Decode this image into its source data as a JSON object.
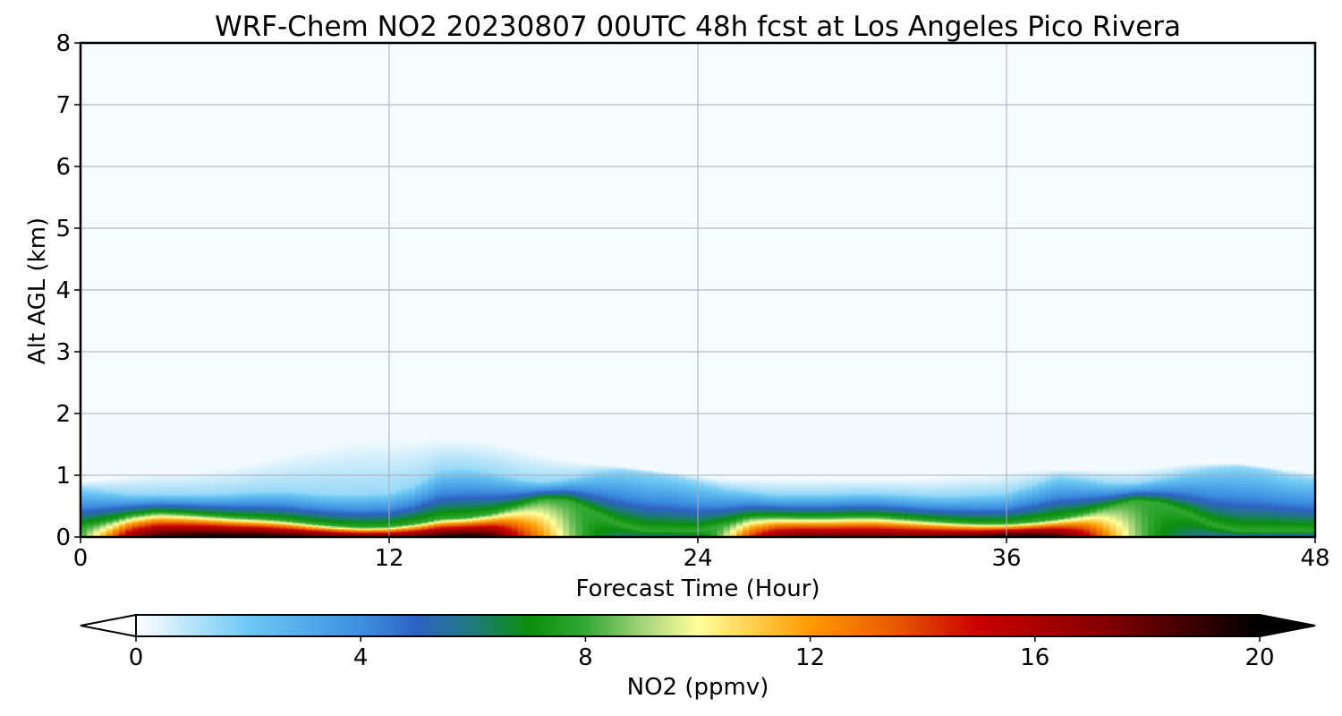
{
  "chart_data": {
    "type": "heatmap",
    "subtype": "filled-contour time-height cross section",
    "title": "WRF-Chem NO2  20230807 00UTC 48h fcst at Los Angeles Pico Rivera",
    "xlabel": "Forecast Time (Hour)",
    "ylabel": "Alt AGL (km)",
    "xlim": [
      0,
      48
    ],
    "ylim": [
      0,
      8
    ],
    "xticks": [
      "0",
      "12",
      "24",
      "36",
      "48"
    ],
    "yticks": [
      "0",
      "1",
      "2",
      "3",
      "4",
      "5",
      "6",
      "7",
      "8"
    ],
    "grid": true,
    "colorbar": {
      "label": "NO2  (ppmv)",
      "range": [
        0,
        20
      ],
      "ticks": [
        "0",
        "4",
        "8",
        "12",
        "16",
        "20"
      ],
      "extend": "both",
      "orientation": "horizontal",
      "placement": "bottom",
      "stops": [
        {
          "value": 0,
          "color": "#ffffff"
        },
        {
          "value": 2,
          "color": "#6cc8f4"
        },
        {
          "value": 4,
          "color": "#3d8fe0"
        },
        {
          "value": 5,
          "color": "#2e62c4"
        },
        {
          "value": 6,
          "color": "#1f7a7a"
        },
        {
          "value": 7,
          "color": "#0a8f0a"
        },
        {
          "value": 8,
          "color": "#33a833"
        },
        {
          "value": 9,
          "color": "#a3d37a"
        },
        {
          "value": 10,
          "color": "#ffff9a"
        },
        {
          "value": 12,
          "color": "#ff9a00"
        },
        {
          "value": 13.5,
          "color": "#e85a00"
        },
        {
          "value": 15,
          "color": "#cc0000"
        },
        {
          "value": 17.5,
          "color": "#7a0000"
        },
        {
          "value": 20,
          "color": "#000000"
        }
      ]
    },
    "profile_model": {
      "background_ppmv": 0.15,
      "haze_ppmv": 1.4,
      "x_hours": [
        0,
        1,
        2,
        3,
        4,
        5,
        6,
        7,
        8,
        9,
        10,
        11,
        12,
        13,
        14,
        15,
        16,
        17,
        18,
        19,
        20,
        21,
        22,
        23,
        24,
        25,
        26,
        27,
        28,
        29,
        30,
        31,
        32,
        33,
        34,
        35,
        36,
        37,
        38,
        39,
        40,
        41,
        42,
        43,
        44,
        45,
        46,
        47,
        48
      ],
      "surface_ppmv": [
        8,
        12,
        17,
        19,
        19.5,
        20,
        20,
        20,
        19.5,
        19,
        18.5,
        18,
        18,
        18.5,
        19.5,
        20,
        19,
        15,
        12,
        9,
        7,
        6,
        5.5,
        5.5,
        6,
        9,
        14,
        17,
        18,
        18,
        18,
        18,
        18,
        18,
        18.5,
        19,
        20,
        20,
        19,
        16,
        12,
        9,
        7,
        6,
        5.5,
        5,
        4.5,
        4.5,
        4.5
      ],
      "core_depth_km": [
        0.15,
        0.25,
        0.35,
        0.4,
        0.38,
        0.35,
        0.32,
        0.3,
        0.27,
        0.22,
        0.18,
        0.16,
        0.17,
        0.22,
        0.3,
        0.32,
        0.38,
        0.5,
        0.62,
        0.6,
        0.4,
        0.2,
        0.1,
        0.1,
        0.1,
        0.2,
        0.32,
        0.33,
        0.32,
        0.32,
        0.33,
        0.33,
        0.3,
        0.27,
        0.24,
        0.22,
        0.22,
        0.25,
        0.3,
        0.38,
        0.5,
        0.6,
        0.55,
        0.4,
        0.2,
        0.1,
        0.1,
        0.1,
        0.1
      ],
      "mix_depth_km": [
        0.8,
        0.75,
        0.7,
        0.7,
        0.7,
        0.7,
        0.72,
        0.75,
        0.75,
        0.72,
        0.7,
        0.7,
        0.72,
        0.85,
        1.1,
        1.12,
        1.05,
        0.95,
        0.9,
        0.95,
        1.05,
        1.1,
        1.05,
        1.0,
        0.9,
        0.8,
        0.75,
        0.7,
        0.7,
        0.7,
        0.72,
        0.72,
        0.7,
        0.68,
        0.68,
        0.7,
        0.72,
        0.85,
        1.0,
        0.95,
        0.88,
        0.88,
        0.95,
        1.05,
        1.12,
        1.15,
        1.1,
        1.0,
        0.95
      ],
      "haze_top_km": [
        0.9,
        0.95,
        1.0,
        1.05,
        1.05,
        1.1,
        1.15,
        1.25,
        1.35,
        1.45,
        1.55,
        1.6,
        1.6,
        1.6,
        1.62,
        1.6,
        1.55,
        1.45,
        1.35,
        1.25,
        1.2,
        1.15,
        1.1,
        1.05,
        1.0,
        0.95,
        0.95,
        0.95,
        0.95,
        0.95,
        0.95,
        0.95,
        0.95,
        0.95,
        1.0,
        1.0,
        1.05,
        1.1,
        1.1,
        1.1,
        1.1,
        1.1,
        1.15,
        1.2,
        1.2,
        1.2,
        1.15,
        1.1,
        1.05
      ]
    }
  }
}
